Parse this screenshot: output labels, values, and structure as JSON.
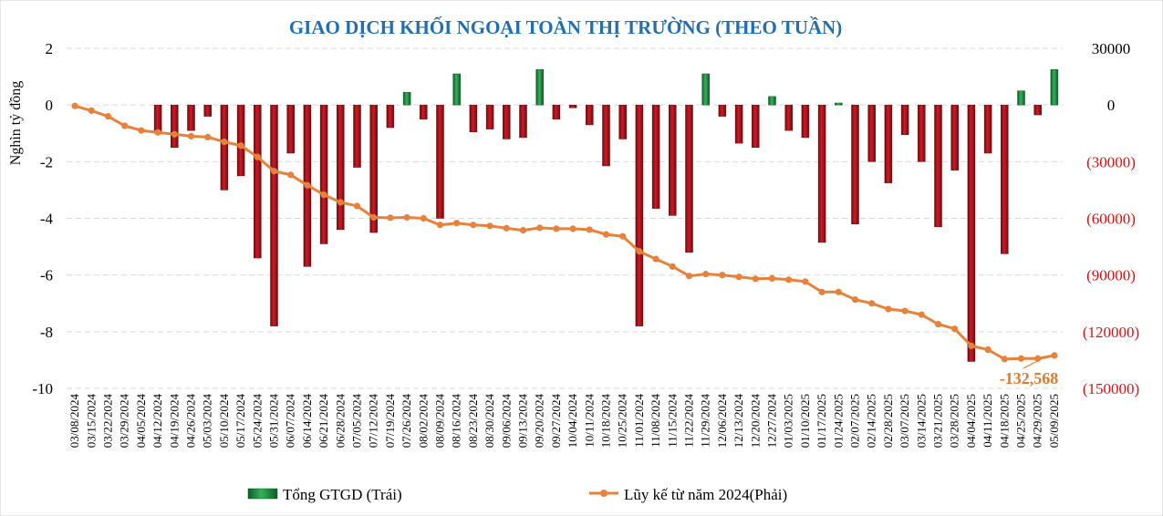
{
  "colors": {
    "positive_bar": "#1f8a3e",
    "positive_bar_dark": "#0d5c24",
    "negative_bar": "#b5121b",
    "negative_bar_dark": "#6d0a0f",
    "line": "#e8823a",
    "title": "#1f6fb2",
    "right_negative_tick": "#e01010"
  },
  "chart_data": {
    "type": "bar",
    "title": "GIAO DỊCH KHỐI NGOẠI TOÀN THỊ TRƯỜNG (THEO TUẦN)",
    "ylabel": "Nghìn tỷ đồng",
    "xlabel": "",
    "ylim": [
      -10,
      2
    ],
    "y2lim": [
      -150000,
      30000
    ],
    "yticks": [
      "2",
      "0",
      "-2",
      "-4",
      "-6",
      "-8",
      "-10"
    ],
    "y2ticks": [
      "30000",
      "0",
      "(30000)",
      "(60000)",
      "(90000)",
      "(120000)",
      "(150000)"
    ],
    "grid": true,
    "legend_position": "bottom",
    "categories": [
      "03/08/2024",
      "03/15/2024",
      "03/22/2024",
      "03/29/2024",
      "04/05/2024",
      "04/12/2024",
      "04/19/2024",
      "04/26/2024",
      "05/03/2024",
      "05/10/2024",
      "05/17/2024",
      "05/24/2024",
      "05/31/2024",
      "06/07/2024",
      "06/14/2024",
      "06/21/2024",
      "06/28/2024",
      "07/05/2024",
      "07/12/2024",
      "07/19/2024",
      "07/26/2024",
      "08/02/2024",
      "08/09/2024",
      "08/16/2024",
      "08/23/2024",
      "08/30/2024",
      "09/06/2024",
      "09/13/2024",
      "09/20/2024",
      "09/27/2024",
      "10/04/2024",
      "10/11/2024",
      "10/18/2024",
      "10/25/2024",
      "11/01/2024",
      "11/08/2024",
      "11/15/2024",
      "11/22/2024",
      "11/29/2024",
      "12/06/2024",
      "12/13/2024",
      "12/20/2024",
      "12/27/2024",
      "01/03/2025",
      "01/10/2025",
      "01/17/2025",
      "01/24/2025",
      "02/07/2025",
      "02/14/2025",
      "02/28/2025",
      "03/07/2025",
      "03/14/2025",
      "03/21/2025",
      "03/28/2025",
      "04/04/2025",
      "04/11/2025",
      "04/18/2025",
      "04/25/2025",
      "04/29/2025",
      "05/09/2025"
    ],
    "series": [
      {
        "name": "Tổng GTGD (Trái)",
        "axis": "left",
        "type": "bar",
        "values": [
          0,
          0,
          0,
          0,
          0,
          -1.0,
          -1.5,
          -0.9,
          -0.4,
          -3.0,
          -2.5,
          -5.4,
          -7.8,
          -1.7,
          -5.7,
          -4.9,
          -4.4,
          -2.2,
          -4.5,
          -0.8,
          0.45,
          -0.5,
          -4.0,
          1.1,
          -0.95,
          -0.85,
          -1.2,
          -1.15,
          1.25,
          -0.5,
          -0.1,
          -0.7,
          -2.15,
          -1.2,
          -7.8,
          -3.65,
          -3.9,
          -5.2,
          1.1,
          -0.4,
          -1.35,
          -1.5,
          0.3,
          -0.9,
          -1.15,
          -4.85,
          0.07,
          -4.2,
          -2.0,
          -2.75,
          -1.05,
          -2.0,
          -4.3,
          -2.3,
          -9.05,
          -1.7,
          -5.25,
          0.5,
          -0.35,
          1.25
        ]
      },
      {
        "name": "Lũy kế từ năm 2024(Phải)",
        "axis": "right",
        "type": "line",
        "values": [
          -500,
          -3000,
          -6000,
          -11000,
          -13500,
          -14500,
          -15500,
          -16500,
          -17000,
          -19500,
          -21500,
          -27500,
          -35000,
          -37000,
          -42500,
          -47500,
          -51500,
          -53500,
          -59500,
          -59700,
          -59500,
          -60000,
          -63500,
          -62500,
          -63500,
          -64000,
          -65200,
          -66300,
          -65000,
          -65500,
          -65500,
          -66000,
          -68500,
          -69500,
          -77500,
          -81500,
          -85500,
          -90500,
          -89500,
          -90000,
          -91000,
          -92000,
          -91800,
          -92500,
          -93500,
          -99000,
          -99000,
          -103000,
          -105000,
          -108000,
          -109000,
          -111000,
          -116000,
          -118500,
          -127500,
          -129500,
          -134500,
          -134200,
          -134200,
          -132568
        ]
      }
    ],
    "annotations": [
      "-132,568"
    ]
  },
  "legend": {
    "bar_label": "Tổng GTGD (Trái)",
    "line_label": "Lũy kế từ năm 2024(Phải)"
  }
}
